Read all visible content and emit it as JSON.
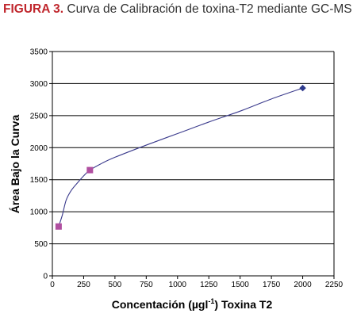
{
  "caption": {
    "lead": "FIGURA 3.",
    "text": "Curva de Calibración de toxina-T2 mediante GC-MS"
  },
  "chart_data": {
    "type": "scatter",
    "title": "",
    "xlabel_main": "Concentación (µgl",
    "xlabel_sup": "-1",
    "xlabel_tail": ") Toxina T2",
    "ylabel": "Área Bajo la Curva",
    "xlim": [
      0,
      2250
    ],
    "ylim": [
      0,
      3500
    ],
    "x_ticks": [
      "0",
      "250",
      "500",
      "750",
      "1000",
      "1250",
      "1500",
      "1750",
      "2000",
      "2250"
    ],
    "y_ticks": [
      "0",
      "500",
      "1000",
      "1500",
      "2000",
      "2500",
      "3000",
      "3500"
    ],
    "grid": "horizontal",
    "colors": {
      "line": "#3a3a8c",
      "marker_pink": "#b04fa0",
      "marker_blue": "#2e3a8c"
    },
    "points": [
      {
        "x": 50,
        "y": 770,
        "color": "#b04fa0",
        "shape": "square"
      },
      {
        "x": 300,
        "y": 1650,
        "color": "#b04fa0",
        "shape": "square"
      },
      {
        "x": 2000,
        "y": 2930,
        "color": "#2e3a8c",
        "shape": "diamond"
      }
    ],
    "curve": [
      {
        "x": 50,
        "y": 770
      },
      {
        "x": 80,
        "y": 950
      },
      {
        "x": 110,
        "y": 1180
      },
      {
        "x": 150,
        "y": 1330
      },
      {
        "x": 200,
        "y": 1450
      },
      {
        "x": 250,
        "y": 1560
      },
      {
        "x": 300,
        "y": 1650
      },
      {
        "x": 400,
        "y": 1760
      },
      {
        "x": 500,
        "y": 1850
      },
      {
        "x": 750,
        "y": 2040
      },
      {
        "x": 1000,
        "y": 2220
      },
      {
        "x": 1250,
        "y": 2400
      },
      {
        "x": 1500,
        "y": 2570
      },
      {
        "x": 1750,
        "y": 2760
      },
      {
        "x": 2000,
        "y": 2930
      }
    ]
  }
}
